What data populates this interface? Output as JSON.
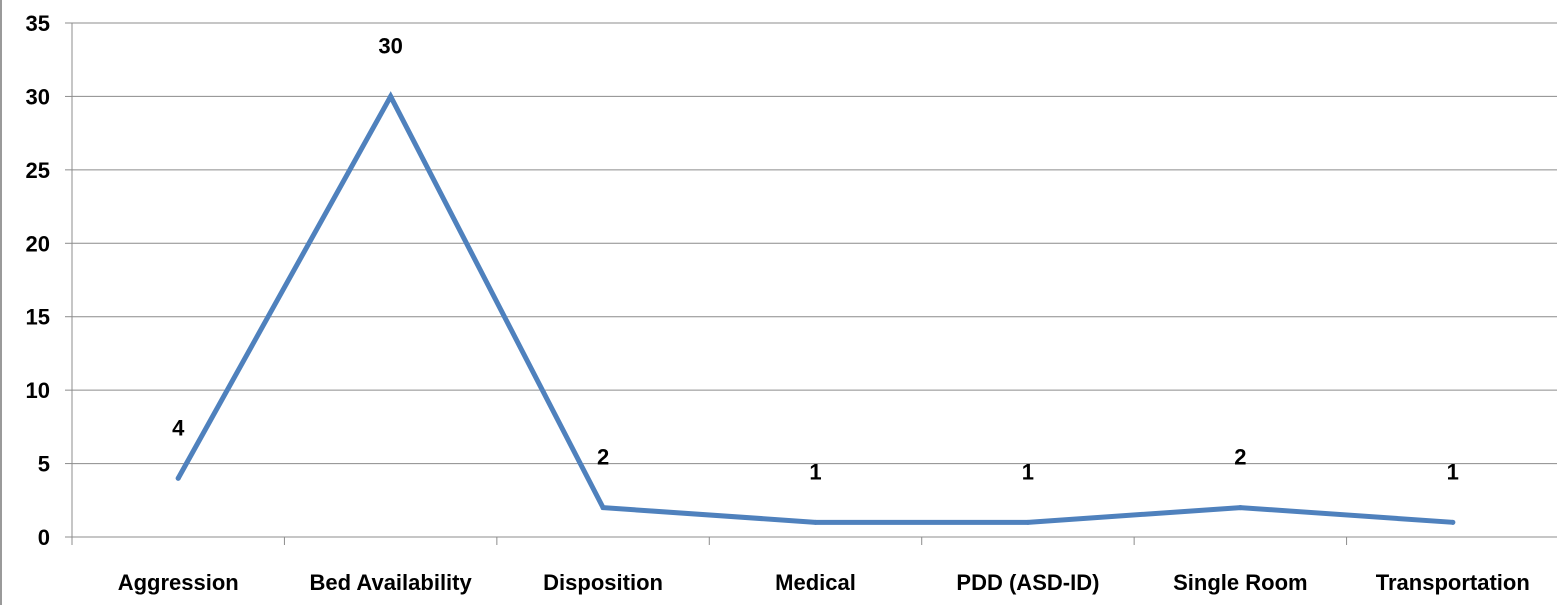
{
  "chart_data": {
    "type": "line",
    "title": "",
    "xlabel": "",
    "ylabel": "",
    "categories": [
      "Aggression",
      "Bed Availability",
      "Disposition",
      "Medical",
      "PDD (ASD-ID)",
      "Single Room",
      "Transportation"
    ],
    "series": [
      {
        "values": [
          4,
          30,
          2,
          1,
          1,
          2,
          1
        ],
        "color": "#4f81bd"
      }
    ],
    "ylim": [
      0,
      35
    ],
    "yticks": [
      0,
      5,
      10,
      15,
      20,
      25,
      30,
      35
    ],
    "grid": true,
    "legend": "none",
    "data_labels": true,
    "colors": {
      "line": "#4f81bd",
      "grid": "#8c8c8c",
      "axis": "#8c8c8c",
      "text": "#000000"
    }
  }
}
